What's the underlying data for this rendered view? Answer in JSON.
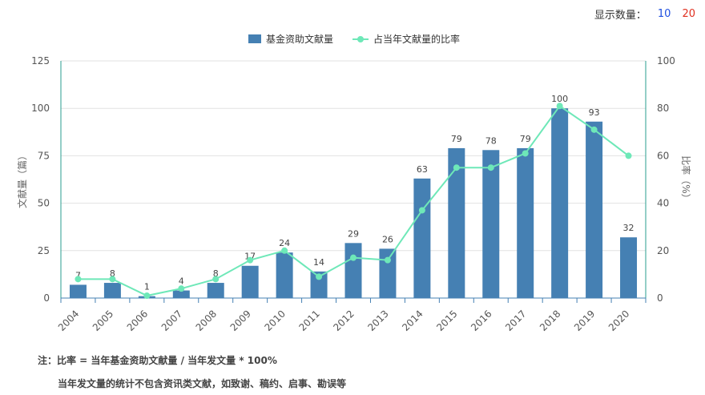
{
  "topbar": {
    "label": "显示数量：",
    "opt_10": "10",
    "opt_20": "20"
  },
  "chart_data": {
    "type": "bar+line",
    "categories": [
      "2004",
      "2005",
      "2006",
      "2007",
      "2008",
      "2009",
      "2010",
      "2011",
      "2012",
      "2013",
      "2014",
      "2015",
      "2016",
      "2017",
      "2018",
      "2019",
      "2020"
    ],
    "series": [
      {
        "name": "基金资助文献量",
        "type": "bar",
        "axis": "left",
        "color": "#4580b3",
        "values": [
          7,
          8,
          1,
          4,
          8,
          17,
          24,
          14,
          29,
          26,
          63,
          79,
          78,
          79,
          100,
          93,
          32
        ],
        "labels": [
          "7",
          "8",
          "1",
          "4",
          "8",
          "17",
          "24",
          "14",
          "29",
          "26",
          "63",
          "79",
          "78",
          "79",
          "100",
          "93",
          "32"
        ]
      },
      {
        "name": "占当年文献量的比率",
        "type": "line",
        "axis": "right",
        "color": "#6ee8b8",
        "values": [
          8,
          8,
          1,
          4,
          8,
          16,
          20,
          9,
          17,
          16,
          37,
          55,
          55,
          61,
          81,
          71,
          60
        ]
      }
    ],
    "ylabel_left": "文献量（篇）",
    "ylabel_right": "比率（%）",
    "ylim_left": [
      0,
      125
    ],
    "yticks_left": [
      "0",
      "25",
      "50",
      "75",
      "100",
      "125"
    ],
    "ylim_right": [
      0,
      100
    ],
    "yticks_right": [
      "0",
      "20",
      "40",
      "60",
      "80",
      "100"
    ],
    "grid": true,
    "legend": "top-center"
  },
  "notes": {
    "line1": "注：比率 = 当年基金资助文献量 / 当年发文量 * 100%",
    "line2": "当年发文量的统计不包含资讯类文献，如致谢、稿约、启事、勘误等"
  }
}
